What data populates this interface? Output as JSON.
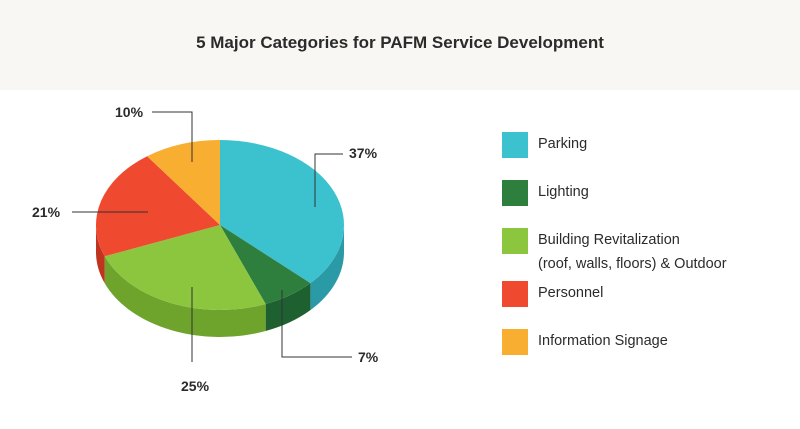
{
  "chart_data": {
    "type": "pie",
    "title": "5 Major Categories for PAFM Service Development",
    "slices": [
      {
        "label": "Parking",
        "value": 37,
        "value_label": "37%",
        "color": "#3cc2cf",
        "side_color": "#2a9aa6"
      },
      {
        "label": "Lighting",
        "value": 7,
        "value_label": "7%",
        "color": "#2e7f3e",
        "side_color": "#1f6030"
      },
      {
        "label": "Building Revitalization\n(roof, walls, floors) & Outdoor",
        "value": 25,
        "value_label": "25%",
        "color": "#8cc63f",
        "side_color": "#6ea32c"
      },
      {
        "label": "Personnel",
        "value": 21,
        "value_label": "21%",
        "color": "#ef4930",
        "side_color": "#c0341f"
      },
      {
        "label": "Information Signage",
        "value": 10,
        "value_label": "10%",
        "color": "#f8ae30",
        "side_color": "#d08a18"
      }
    ],
    "legend_position": "right",
    "style": "3d-pie"
  }
}
